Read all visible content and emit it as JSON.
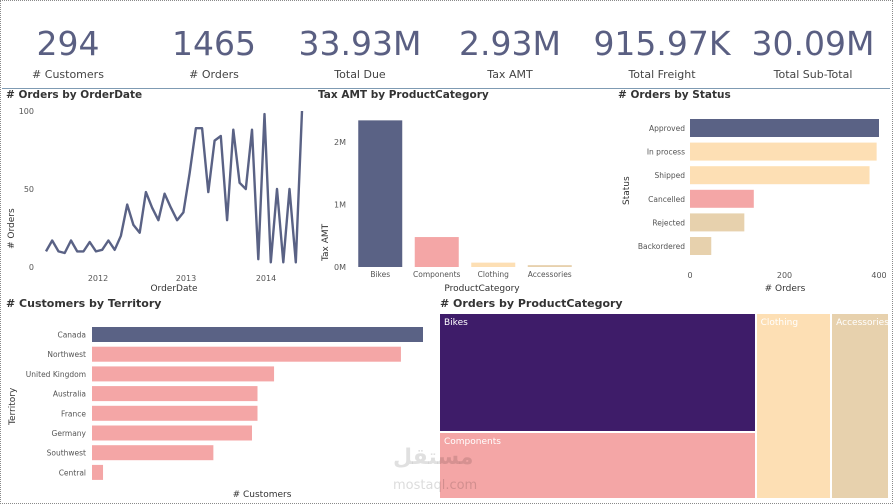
{
  "kpis": [
    {
      "value": "294",
      "label": "# Customers"
    },
    {
      "value": "1465",
      "label": "# Orders"
    },
    {
      "value": "33.93M",
      "label": "Total Due"
    },
    {
      "value": "2.93M",
      "label": "Tax AMT"
    },
    {
      "value": "915.97K",
      "label": "Total Freight"
    },
    {
      "value": "30.09M",
      "label": "Total Sub-Total"
    }
  ],
  "colors": {
    "navy": "#5a6285",
    "salmon": "#f4a6a6",
    "peach": "#fddfb4",
    "tan": "#e7d1ad",
    "purple": "#3e1c69"
  },
  "watermark": {
    "logo": "مستقل",
    "url": "mostaql.com"
  },
  "chart_data": [
    {
      "type": "line",
      "title": "# Orders by OrderDate",
      "xlabel": "OrderDate",
      "ylabel": "# Orders",
      "ylim": [
        0,
        100
      ],
      "yticks": [
        0,
        50,
        100
      ],
      "xticks": [
        "2012",
        "2013",
        "2014"
      ],
      "grid": false,
      "series": [
        {
          "values": [
            10,
            17,
            10,
            9,
            17,
            10,
            10,
            16,
            10,
            11,
            17,
            11,
            20,
            40,
            27,
            22,
            48,
            38,
            30,
            47,
            38,
            30,
            35,
            60,
            89,
            89,
            48,
            81,
            84,
            30,
            88,
            54,
            50,
            88,
            5,
            98,
            3,
            50,
            3,
            50,
            3,
            100
          ]
        }
      ]
    },
    {
      "type": "bar",
      "title": "Tax AMT by ProductCategory",
      "xlabel": "ProductCategory",
      "ylabel": "Tax AMT",
      "categories": [
        "Bikes",
        "Components",
        "Clothing",
        "Accessories"
      ],
      "values": [
        2.35,
        0.48,
        0.07,
        0.03
      ],
      "ylim": [
        0,
        2.5
      ],
      "ytick_labels": [
        "0M",
        "1M",
        "2M"
      ],
      "yticks": [
        0,
        1,
        2
      ]
    },
    {
      "type": "bar",
      "orientation": "horizontal",
      "title": "# Orders by Status",
      "xlabel": "# Orders",
      "ylabel": "Status",
      "categories": [
        "Approved",
        "In process",
        "Shipped",
        "Cancelled",
        "Rejected",
        "Backordered"
      ],
      "values": [
        400,
        395,
        380,
        135,
        115,
        45
      ],
      "xlim": [
        0,
        400
      ],
      "xticks": [
        0,
        200,
        400
      ]
    },
    {
      "type": "bar",
      "orientation": "horizontal",
      "title": "# Customers by Territory",
      "xlabel": "# Customers",
      "ylabel": "Territory",
      "categories": [
        "Canada",
        "Northwest",
        "United Kingdom",
        "Australia",
        "France",
        "Germany",
        "Southwest",
        "Central"
      ],
      "values": [
        60,
        56,
        33,
        30,
        30,
        29,
        22,
        2
      ],
      "xlim": [
        0,
        60
      ]
    },
    {
      "type": "treemap",
      "title": "# Orders by ProductCategory",
      "categories": [
        "Bikes",
        "Components",
        "Clothing",
        "Accessories"
      ],
      "values": [
        47.8,
        27.2,
        17.9,
        13.7
      ]
    }
  ]
}
